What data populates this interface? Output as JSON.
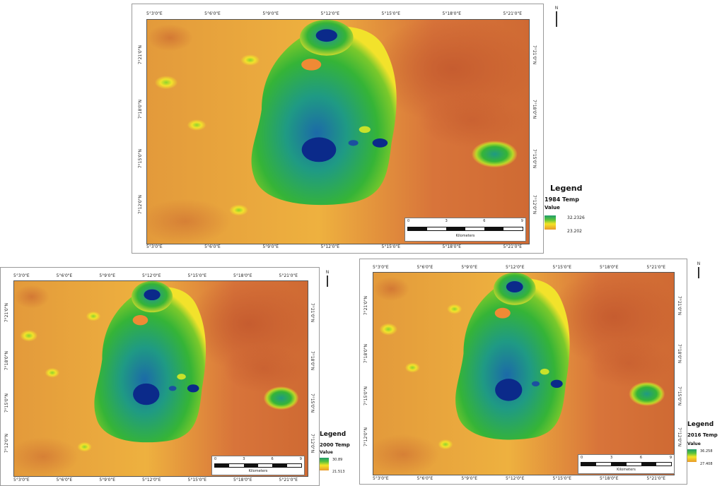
{
  "colors": {
    "deep_blue": "#0b2a8a",
    "blue": "#2e6fb0",
    "teal": "#229a8e",
    "green": "#35b437",
    "lime": "#9bd22a",
    "yellow": "#f3e52b",
    "orange": "#e8a33a",
    "dark_orange": "#d2712f",
    "red_brown": "#c25a2f"
  },
  "icons": {
    "north_arrow": "north-arrow-icon"
  },
  "maps": [
    {
      "id": "map-1984",
      "lon_ticks_top": [
        "5°3'0\"E",
        "5°6'0\"E",
        "5°9'0\"E",
        "5°12'0\"E",
        "5°15'0\"E",
        "5°18'0\"E",
        "5°21'0\"E"
      ],
      "lon_ticks_bottom": [
        "5°3'0\"E",
        "5°6'0\"E",
        "5°9'0\"E",
        "5°12'0\"E",
        "5°15'0\"E",
        "5°18'0\"E",
        "5°21'0\"E"
      ],
      "lat_ticks": [
        "7°21'0\"N",
        "7°18'0\"N",
        "7°15'0\"N",
        "7°12'0\"N"
      ],
      "north_label": "N",
      "scale": {
        "labels": [
          "0",
          "3",
          "6",
          "9"
        ],
        "unit": "Kilometers"
      },
      "legend": {
        "title": "Legend",
        "layer": "1984 Temp",
        "value_label": "Value",
        "max": "32.2326",
        "min": "23.202"
      }
    },
    {
      "id": "map-2000",
      "lon_ticks_top": [
        "5°3'0\"E",
        "5°6'0\"E",
        "5°9'0\"E",
        "5°12'0\"E",
        "5°15'0\"E",
        "5°18'0\"E",
        "5°21'0\"E"
      ],
      "lon_ticks_bottom": [
        "5°3'0\"E",
        "5°6'0\"E",
        "5°9'0\"E",
        "5°12'0\"E",
        "5°15'0\"E",
        "5°18'0\"E",
        "5°21'0\"E"
      ],
      "lat_ticks": [
        "7°21'0\"N",
        "7°18'0\"N",
        "7°15'0\"N",
        "7°12'0\"N"
      ],
      "north_label": "N",
      "scale": {
        "labels": [
          "0",
          "3",
          "6",
          "9"
        ],
        "unit": "Kilometers"
      },
      "legend": {
        "title": "Legend",
        "layer": "2000 Temp",
        "value_label": "Value",
        "max": "30.89",
        "min": "21.513"
      }
    },
    {
      "id": "map-2016",
      "lon_ticks_top": [
        "5°3'0\"E",
        "5°6'0\"E",
        "5°9'0\"E",
        "5°12'0\"E",
        "5°15'0\"E",
        "5°18'0\"E",
        "5°21'0\"E"
      ],
      "lon_ticks_bottom": [
        "5°3'0\"E",
        "5°6'0\"E",
        "5°9'0\"E",
        "5°12'0\"E",
        "5°15'0\"E",
        "5°18'0\"E",
        "5°21'0\"E"
      ],
      "lat_ticks": [
        "7°21'0\"N",
        "7°18'0\"N",
        "7°15'0\"N",
        "7°12'0\"N"
      ],
      "north_label": "N",
      "scale": {
        "labels": [
          "0",
          "3",
          "6",
          "9"
        ],
        "unit": "Kilometers"
      },
      "legend": {
        "title": "Legend",
        "layer": "2016 Temp",
        "value_label": "Value",
        "max": "36.258",
        "min": "27.408"
      }
    }
  ]
}
